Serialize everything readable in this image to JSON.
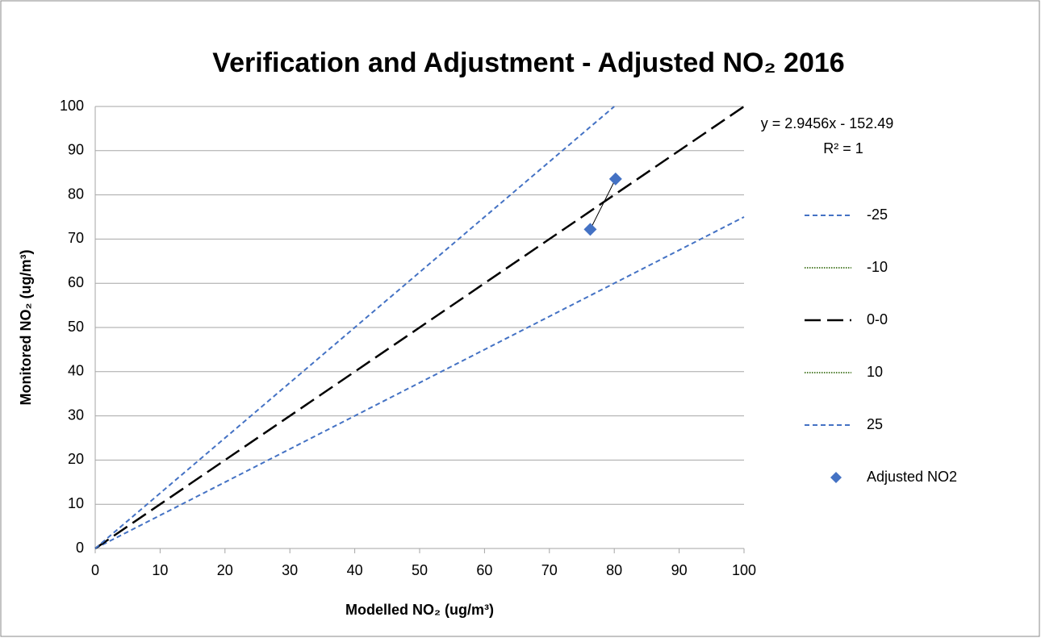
{
  "chart_data": {
    "type": "scatter",
    "title": "Verification and Adjustment - Adjusted NO₂ 2016",
    "x_label": "Modelled NO₂ (ug/m³)",
    "y_label": "Monitored NO₂ (ug/m³)",
    "annotations": [
      "y = 2.9456x - 152.49",
      "R² = 1"
    ],
    "xlim": [
      0,
      100
    ],
    "ylim": [
      0,
      100
    ],
    "xticks": [
      0,
      10,
      20,
      30,
      40,
      50,
      60,
      70,
      80,
      90,
      100
    ],
    "yticks": [
      0,
      10,
      20,
      30,
      40,
      50,
      60,
      70,
      80,
      90,
      100
    ],
    "grid": true,
    "legend": "right",
    "series": [
      {
        "name": "-25",
        "color": "#4472c4",
        "style": "dashed",
        "x": [
          0,
          100
        ],
        "values": [
          0,
          75
        ]
      },
      {
        "name": "-10",
        "color": "#548235",
        "style": "dotted",
        "x": [],
        "values": []
      },
      {
        "name": "0-0",
        "color": "#000000",
        "style": "longdash",
        "x": [
          0,
          100
        ],
        "values": [
          0,
          100
        ]
      },
      {
        "name": "10",
        "color": "#548235",
        "style": "dotted",
        "x": [],
        "values": []
      },
      {
        "name": "25",
        "color": "#4472c4",
        "style": "dashed",
        "x": [
          0,
          80
        ],
        "values": [
          0,
          100
        ]
      },
      {
        "name": "Adjusted NO2",
        "color": "#4472c4",
        "style": "marker",
        "trendline": true,
        "x": [
          76.3,
          80.2
        ],
        "values": [
          72.2,
          83.6
        ]
      }
    ]
  }
}
